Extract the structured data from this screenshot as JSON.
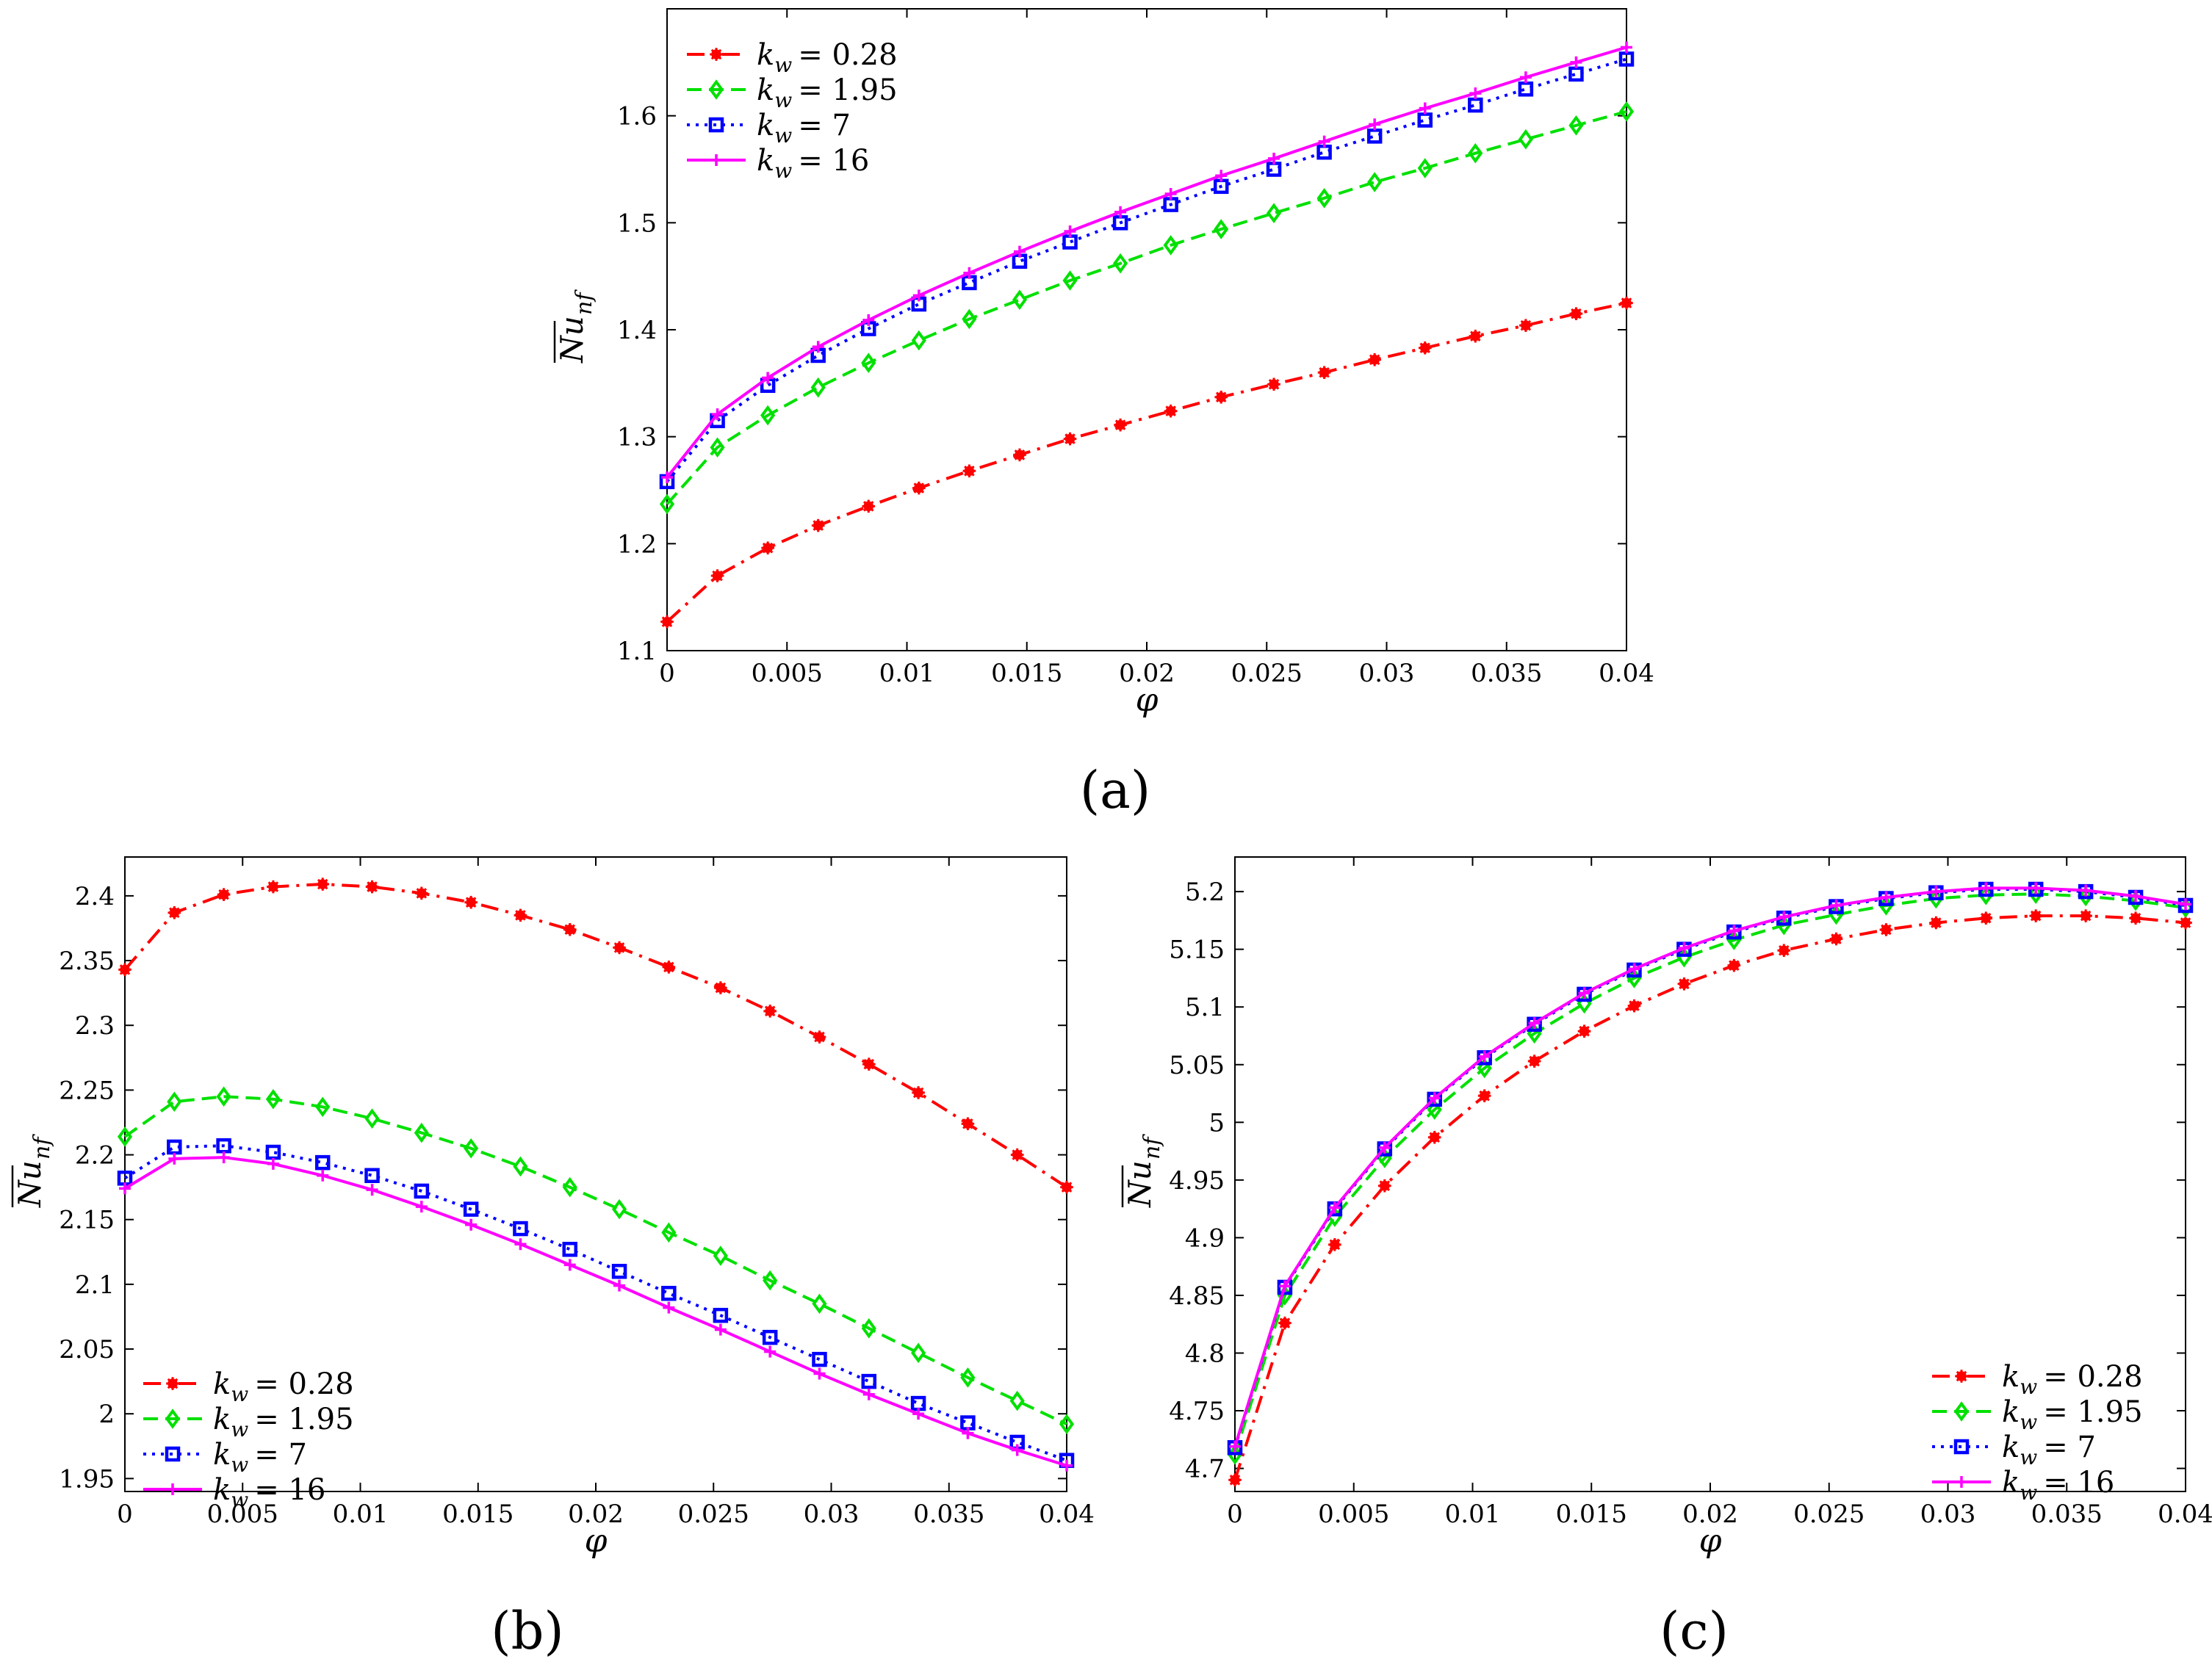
{
  "chart_data": [
    {
      "type": "line",
      "panel_label": "(a)",
      "xlabel": "φ",
      "ylabel": "Nu",
      "ylabel_sub": "nf",
      "xlim": [
        0,
        0.04
      ],
      "ylim": [
        1.1,
        1.7
      ],
      "xticks": [
        "0",
        "0.005",
        "0.01",
        "0.015",
        "0.02",
        "0.025",
        "0.03",
        "0.035",
        "0.04"
      ],
      "yticks": [
        "1.1",
        "1.2",
        "1.3",
        "1.4",
        "1.5",
        "1.6"
      ],
      "x": [
        0,
        0.0021,
        0.0042,
        0.0063,
        0.0084,
        0.0105,
        0.0126,
        0.0147,
        0.0168,
        0.0189,
        0.021,
        0.0231,
        0.0253,
        0.0274,
        0.0295,
        0.0316,
        0.0337,
        0.0358,
        0.0379,
        0.04
      ],
      "legend_position": "top-left",
      "series": [
        {
          "name": "k_w = 0.28",
          "label_sub": "w",
          "label_value": "= 0.28",
          "color": "#ff0000",
          "marker": "star",
          "dash": "24 10 4 10",
          "values": [
            1.127,
            1.17,
            1.196,
            1.217,
            1.235,
            1.252,
            1.268,
            1.283,
            1.298,
            1.311,
            1.324,
            1.337,
            1.349,
            1.36,
            1.372,
            1.383,
            1.394,
            1.404,
            1.415,
            1.425
          ]
        },
        {
          "name": "k_w = 1.95",
          "label_sub": "w",
          "label_value": "= 1.95",
          "color": "#00e000",
          "marker": "diamond",
          "dash": "20 10",
          "values": [
            1.237,
            1.29,
            1.32,
            1.346,
            1.369,
            1.39,
            1.41,
            1.428,
            1.446,
            1.462,
            1.479,
            1.494,
            1.509,
            1.523,
            1.538,
            1.551,
            1.565,
            1.578,
            1.591,
            1.604
          ]
        },
        {
          "name": "k_w = 7",
          "label_sub": "w",
          "label_value": "= 7",
          "color": "#0000ff",
          "marker": "square",
          "dash": "4 8",
          "values": [
            1.258,
            1.315,
            1.348,
            1.376,
            1.401,
            1.424,
            1.444,
            1.464,
            1.482,
            1.5,
            1.517,
            1.534,
            1.55,
            1.566,
            1.581,
            1.596,
            1.61,
            1.625,
            1.639,
            1.653
          ]
        },
        {
          "name": "k_w = 16",
          "label_sub": "w",
          "label_value": "= 16",
          "color": "#ff00ff",
          "marker": "plus",
          "dash": "",
          "values": [
            1.262,
            1.321,
            1.355,
            1.384,
            1.409,
            1.432,
            1.453,
            1.473,
            1.492,
            1.51,
            1.527,
            1.544,
            1.56,
            1.576,
            1.592,
            1.607,
            1.621,
            1.636,
            1.65,
            1.664
          ]
        }
      ]
    },
    {
      "type": "line",
      "panel_label": "(b)",
      "xlabel": "φ",
      "ylabel": "Nu",
      "ylabel_sub": "nf",
      "xlim": [
        0,
        0.04
      ],
      "ylim": [
        1.94,
        2.43
      ],
      "xticks": [
        "0",
        "0.005",
        "0.01",
        "0.015",
        "0.02",
        "0.025",
        "0.03",
        "0.035",
        "0.04"
      ],
      "yticks": [
        "1.95",
        "2",
        "2.05",
        "2.1",
        "2.15",
        "2.2",
        "2.25",
        "2.3",
        "2.35",
        "2.4"
      ],
      "x": [
        0,
        0.0021,
        0.0042,
        0.0063,
        0.0084,
        0.0105,
        0.0126,
        0.0147,
        0.0168,
        0.0189,
        0.021,
        0.0231,
        0.0253,
        0.0274,
        0.0295,
        0.0316,
        0.0337,
        0.0358,
        0.0379,
        0.04
      ],
      "legend_position": "bottom-left",
      "series": [
        {
          "name": "k_w = 0.28",
          "label_sub": "w",
          "label_value": "= 0.28",
          "color": "#ff0000",
          "marker": "star",
          "dash": "24 10 4 10",
          "values": [
            2.343,
            2.387,
            2.401,
            2.407,
            2.409,
            2.407,
            2.402,
            2.395,
            2.385,
            2.374,
            2.36,
            2.345,
            2.329,
            2.311,
            2.291,
            2.27,
            2.248,
            2.224,
            2.2,
            2.175
          ]
        },
        {
          "name": "k_w = 1.95",
          "label_sub": "w",
          "label_value": "= 1.95",
          "color": "#00e000",
          "marker": "diamond",
          "dash": "20 10",
          "values": [
            2.214,
            2.241,
            2.245,
            2.243,
            2.237,
            2.228,
            2.217,
            2.205,
            2.191,
            2.175,
            2.158,
            2.14,
            2.122,
            2.103,
            2.085,
            2.066,
            2.047,
            2.028,
            2.01,
            1.992
          ]
        },
        {
          "name": "k_w = 7",
          "label_sub": "w",
          "label_value": "= 7",
          "color": "#0000ff",
          "marker": "square",
          "dash": "4 8",
          "values": [
            2.182,
            2.206,
            2.207,
            2.202,
            2.194,
            2.184,
            2.172,
            2.158,
            2.143,
            2.127,
            2.11,
            2.093,
            2.076,
            2.059,
            2.042,
            2.025,
            2.008,
            1.993,
            1.978,
            1.964
          ]
        },
        {
          "name": "k_w = 16",
          "label_sub": "w",
          "label_value": "= 16",
          "color": "#ff00ff",
          "marker": "plus",
          "dash": "",
          "values": [
            2.174,
            2.197,
            2.198,
            2.193,
            2.184,
            2.173,
            2.16,
            2.146,
            2.131,
            2.115,
            2.099,
            2.082,
            2.065,
            2.048,
            2.031,
            2.015,
            2.0,
            1.985,
            1.972,
            1.96
          ]
        }
      ]
    },
    {
      "type": "line",
      "panel_label": "(c)",
      "xlabel": "φ",
      "ylabel": "Nu",
      "ylabel_sub": "nf",
      "xlim": [
        0,
        0.04
      ],
      "ylim": [
        4.68,
        5.23
      ],
      "xticks": [
        "0",
        "0.005",
        "0.01",
        "0.015",
        "0.02",
        "0.025",
        "0.03",
        "0.035",
        "0.04"
      ],
      "yticks": [
        "4.7",
        "4.75",
        "4.8",
        "4.85",
        "4.9",
        "4.95",
        "5",
        "5.05",
        "5.1",
        "5.15",
        "5.2"
      ],
      "x": [
        0,
        0.0021,
        0.0042,
        0.0063,
        0.0084,
        0.0105,
        0.0126,
        0.0147,
        0.0168,
        0.0189,
        0.021,
        0.0231,
        0.0253,
        0.0274,
        0.0295,
        0.0316,
        0.0337,
        0.0358,
        0.0379,
        0.04
      ],
      "legend_position": "bottom-right",
      "series": [
        {
          "name": "k_w = 0.28",
          "label_sub": "w",
          "label_value": "= 0.28",
          "color": "#ff0000",
          "marker": "star",
          "dash": "24 10 4 10",
          "values": [
            4.69,
            4.826,
            4.894,
            4.945,
            4.987,
            5.023,
            5.053,
            5.079,
            5.101,
            5.12,
            5.136,
            5.149,
            5.159,
            5.167,
            5.173,
            5.177,
            5.179,
            5.179,
            5.177,
            5.173
          ]
        },
        {
          "name": "k_w = 1.95",
          "label_sub": "w",
          "label_value": "= 1.95",
          "color": "#00e000",
          "marker": "diamond",
          "dash": "20 10",
          "values": [
            4.712,
            4.85,
            4.918,
            4.969,
            5.011,
            5.047,
            5.077,
            5.103,
            5.125,
            5.143,
            5.158,
            5.171,
            5.18,
            5.188,
            5.194,
            5.197,
            5.198,
            5.196,
            5.192,
            5.186
          ]
        },
        {
          "name": "k_w = 7",
          "label_sub": "w",
          "label_value": "= 7",
          "color": "#0000ff",
          "marker": "square",
          "dash": "4 8",
          "values": [
            4.718,
            4.857,
            4.925,
            4.977,
            5.02,
            5.056,
            5.085,
            5.111,
            5.132,
            5.15,
            5.165,
            5.177,
            5.187,
            5.194,
            5.199,
            5.202,
            5.202,
            5.2,
            5.195,
            5.188
          ]
        },
        {
          "name": "k_w = 16",
          "label_sub": "w",
          "label_value": "= 16",
          "color": "#ff00ff",
          "marker": "plus",
          "dash": "",
          "values": [
            4.719,
            4.858,
            4.926,
            4.978,
            5.021,
            5.057,
            5.086,
            5.112,
            5.133,
            5.151,
            5.166,
            5.178,
            5.188,
            5.195,
            5.2,
            5.203,
            5.203,
            5.201,
            5.196,
            5.189
          ]
        }
      ]
    }
  ]
}
